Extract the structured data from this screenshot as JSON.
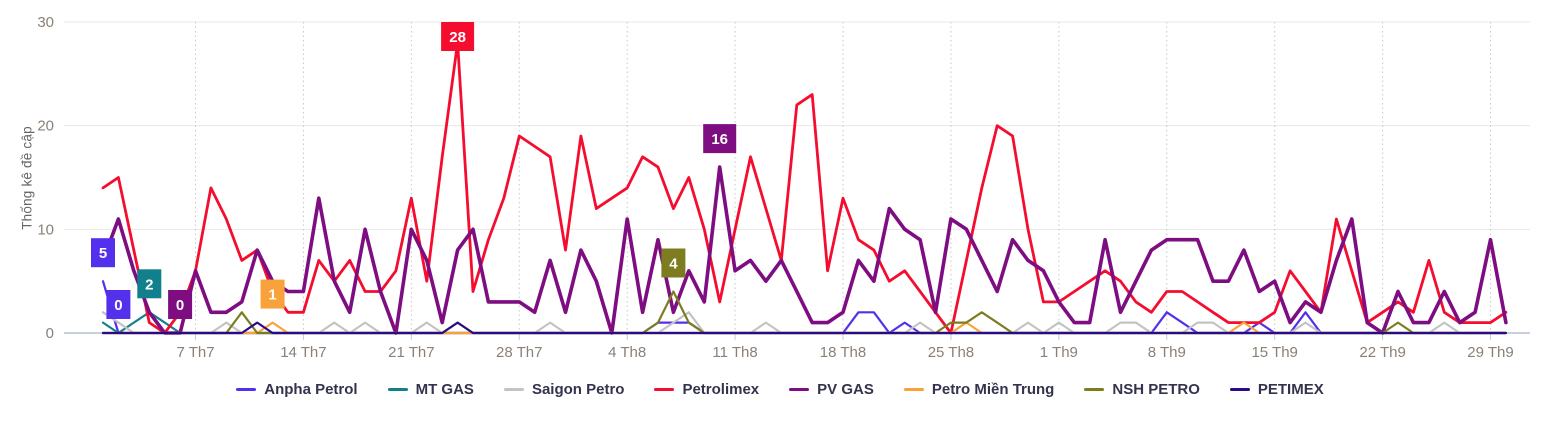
{
  "chart_data": {
    "type": "line",
    "title": "",
    "ylabel": "Thống kê đề cập",
    "xlabel": "",
    "ylim": [
      0,
      30
    ],
    "y_ticks": [
      0,
      10,
      20,
      30
    ],
    "grid": {
      "horizontal": "solid",
      "vertical": "dotted"
    },
    "legend_position": "bottom-center",
    "x_ticks": [
      {
        "day": 6,
        "label": "7 Th7"
      },
      {
        "day": 13,
        "label": "14 Th7"
      },
      {
        "day": 20,
        "label": "21 Th7"
      },
      {
        "day": 27,
        "label": "28 Th7"
      },
      {
        "day": 34,
        "label": "4 Th8"
      },
      {
        "day": 41,
        "label": "11 Th8"
      },
      {
        "day": 48,
        "label": "18 Th8"
      },
      {
        "day": 55,
        "label": "25 Th8"
      },
      {
        "day": 62,
        "label": "1 Th9"
      },
      {
        "day": 69,
        "label": "8 Th9"
      },
      {
        "day": 76,
        "label": "15 Th9"
      },
      {
        "day": 83,
        "label": "22 Th9"
      },
      {
        "day": 90,
        "label": "29 Th9"
      }
    ],
    "series": [
      {
        "name": "Anpha Petrol",
        "color": "#5331EC",
        "values": [
          5,
          0,
          0,
          0,
          0,
          0,
          0,
          0,
          0,
          0,
          0,
          0,
          0,
          0,
          0,
          0,
          0,
          0,
          0,
          0,
          0,
          0,
          0,
          0,
          0,
          0,
          0,
          0,
          0,
          0,
          0,
          0,
          0,
          0,
          0,
          0,
          1,
          1,
          1,
          0,
          0,
          0,
          0,
          0,
          0,
          0,
          0,
          0,
          0,
          2,
          2,
          0,
          1,
          0,
          0,
          0,
          0,
          0,
          0,
          0,
          0,
          0,
          0,
          0,
          0,
          0,
          0,
          0,
          0,
          2,
          1,
          0,
          0,
          0,
          0,
          1,
          0,
          0,
          2,
          0,
          0,
          0,
          0,
          0,
          0,
          0,
          0,
          0,
          0,
          0,
          0,
          0
        ]
      },
      {
        "name": "MT GAS",
        "color": "#12808C",
        "values": [
          1,
          0,
          1,
          2,
          1,
          0,
          0,
          0,
          0,
          0,
          0,
          0,
          0,
          0,
          0,
          0,
          0,
          0,
          0,
          0,
          0,
          0,
          0,
          0,
          0,
          0,
          0,
          0,
          0,
          0,
          0,
          0,
          0,
          0,
          0,
          0,
          0,
          0,
          0,
          0,
          0,
          0,
          0,
          0,
          0,
          0,
          0,
          0,
          0,
          0,
          0,
          0,
          0,
          0,
          0,
          0,
          0,
          0,
          0,
          0,
          0,
          0,
          0,
          0,
          0,
          0,
          0,
          0,
          0,
          0,
          0,
          0,
          0,
          0,
          0,
          0,
          0,
          0,
          0,
          0,
          0,
          0,
          0,
          0,
          0,
          0,
          0,
          0,
          0,
          0,
          0,
          0
        ]
      },
      {
        "name": "Saigon Petro",
        "color": "#C3C3C3",
        "values": [
          2,
          1,
          0,
          0,
          0,
          0,
          0,
          0,
          1,
          0,
          0,
          0,
          0,
          0,
          0,
          1,
          0,
          1,
          0,
          0,
          0,
          1,
          0,
          0,
          0,
          0,
          0,
          0,
          0,
          1,
          0,
          0,
          0,
          0,
          0,
          0,
          0,
          1,
          2,
          0,
          0,
          0,
          0,
          1,
          0,
          0,
          0,
          0,
          0,
          0,
          0,
          0,
          0,
          1,
          0,
          0,
          0,
          0,
          0,
          0,
          1,
          0,
          1,
          0,
          0,
          0,
          1,
          1,
          0,
          0,
          0,
          1,
          1,
          0,
          0,
          0,
          0,
          0,
          1,
          0,
          0,
          0,
          0,
          0,
          0,
          0,
          0,
          1,
          0,
          0,
          0,
          0
        ]
      },
      {
        "name": "Petrolimex",
        "color": "#F40D2F",
        "values": [
          14,
          15,
          8,
          1,
          0,
          2,
          6,
          14,
          11,
          7,
          8,
          4,
          2,
          2,
          7,
          5,
          7,
          4,
          4,
          6,
          13,
          5,
          17,
          28,
          4,
          9,
          13,
          19,
          18,
          17,
          8,
          19,
          12,
          13,
          14,
          17,
          16,
          12,
          15,
          10,
          3,
          10,
          17,
          12,
          7,
          22,
          23,
          6,
          13,
          9,
          8,
          5,
          6,
          4,
          2,
          0,
          7,
          14,
          20,
          19,
          10,
          3,
          3,
          4,
          5,
          6,
          5,
          3,
          2,
          4,
          4,
          3,
          2,
          1,
          1,
          1,
          2,
          6,
          4,
          2,
          11,
          6,
          1,
          2,
          3,
          2,
          7,
          2,
          1,
          1,
          1,
          2
        ]
      },
      {
        "name": "PV GAS",
        "color": "#7E0D82",
        "values": [
          7,
          11,
          6,
          2,
          0,
          0,
          6,
          2,
          2,
          3,
          8,
          5,
          4,
          4,
          13,
          5,
          2,
          10,
          4,
          0,
          10,
          7,
          1,
          8,
          10,
          3,
          3,
          3,
          2,
          7,
          2,
          8,
          5,
          0,
          11,
          2,
          9,
          2,
          6,
          3,
          16,
          6,
          7,
          5,
          7,
          4,
          1,
          1,
          2,
          7,
          5,
          12,
          10,
          9,
          2,
          11,
          10,
          7,
          4,
          9,
          7,
          6,
          3,
          1,
          1,
          9,
          2,
          5,
          8,
          9,
          9,
          9,
          5,
          5,
          8,
          4,
          5,
          1,
          3,
          2,
          7,
          11,
          1,
          0,
          4,
          1,
          1,
          4,
          1,
          2,
          9,
          1
        ]
      },
      {
        "name": "Petro Miền Trung",
        "color": "#F9A23C",
        "values": [
          0,
          0,
          0,
          0,
          0,
          0,
          0,
          0,
          0,
          0,
          0,
          1,
          0,
          0,
          0,
          0,
          0,
          0,
          0,
          0,
          0,
          0,
          0,
          0,
          0,
          0,
          0,
          0,
          0,
          0,
          0,
          0,
          0,
          0,
          0,
          0,
          0,
          0,
          0,
          0,
          0,
          0,
          0,
          0,
          0,
          0,
          0,
          0,
          0,
          0,
          0,
          0,
          0,
          0,
          0,
          0,
          1,
          0,
          0,
          0,
          0,
          0,
          0,
          0,
          0,
          0,
          0,
          0,
          0,
          0,
          0,
          0,
          0,
          0,
          1,
          0,
          0,
          0,
          0,
          0,
          0,
          0,
          0,
          0,
          0,
          0,
          0,
          0,
          0,
          0,
          0,
          0
        ]
      },
      {
        "name": "NSH PETRO",
        "color": "#7D7D20",
        "values": [
          0,
          0,
          0,
          0,
          0,
          0,
          0,
          0,
          0,
          2,
          0,
          0,
          0,
          0,
          0,
          0,
          0,
          0,
          0,
          0,
          0,
          0,
          0,
          1,
          0,
          0,
          0,
          0,
          0,
          0,
          0,
          0,
          0,
          0,
          0,
          0,
          1,
          4,
          1,
          0,
          0,
          0,
          0,
          0,
          0,
          0,
          0,
          0,
          0,
          0,
          0,
          0,
          0,
          0,
          0,
          1,
          1,
          2,
          1,
          0,
          0,
          0,
          0,
          0,
          0,
          0,
          0,
          0,
          0,
          0,
          0,
          0,
          0,
          0,
          0,
          0,
          0,
          0,
          0,
          0,
          0,
          0,
          0,
          0,
          1,
          0,
          0,
          0,
          0,
          0,
          0,
          0
        ]
      },
      {
        "name": "PETIMEX",
        "color": "#2B0A87",
        "values": [
          0,
          0,
          0,
          0,
          0,
          0,
          0,
          0,
          0,
          0,
          1,
          0,
          0,
          0,
          0,
          0,
          0,
          0,
          0,
          0,
          0,
          0,
          0,
          1,
          0,
          0,
          0,
          0,
          0,
          0,
          0,
          0,
          0,
          0,
          0,
          0,
          0,
          0,
          0,
          0,
          0,
          0,
          0,
          0,
          0,
          0,
          0,
          0,
          0,
          0,
          0,
          0,
          0,
          0,
          0,
          0,
          0,
          0,
          0,
          0,
          0,
          0,
          0,
          0,
          0,
          0,
          0,
          0,
          0,
          0,
          0,
          0,
          0,
          0,
          0,
          0,
          0,
          0,
          0,
          0,
          0,
          0,
          0,
          0,
          0,
          0,
          0,
          0,
          0,
          0,
          0,
          0
        ]
      }
    ],
    "point_labels": [
      {
        "series": "Anpha Petrol",
        "day": 0,
        "value": 5
      },
      {
        "series": "Anpha Petrol",
        "day": 1,
        "value": 0
      },
      {
        "series": "MT GAS",
        "day": 3,
        "value": 2
      },
      {
        "series": "PV GAS",
        "day": 5,
        "value": 0
      },
      {
        "series": "Petro Miền Trung",
        "day": 11,
        "value": 1
      },
      {
        "series": "Petrolimex",
        "day": 23,
        "value": 28
      },
      {
        "series": "NSH PETRO",
        "day": 37,
        "value": 4
      },
      {
        "series": "PV GAS",
        "day": 40,
        "value": 16
      }
    ]
  }
}
